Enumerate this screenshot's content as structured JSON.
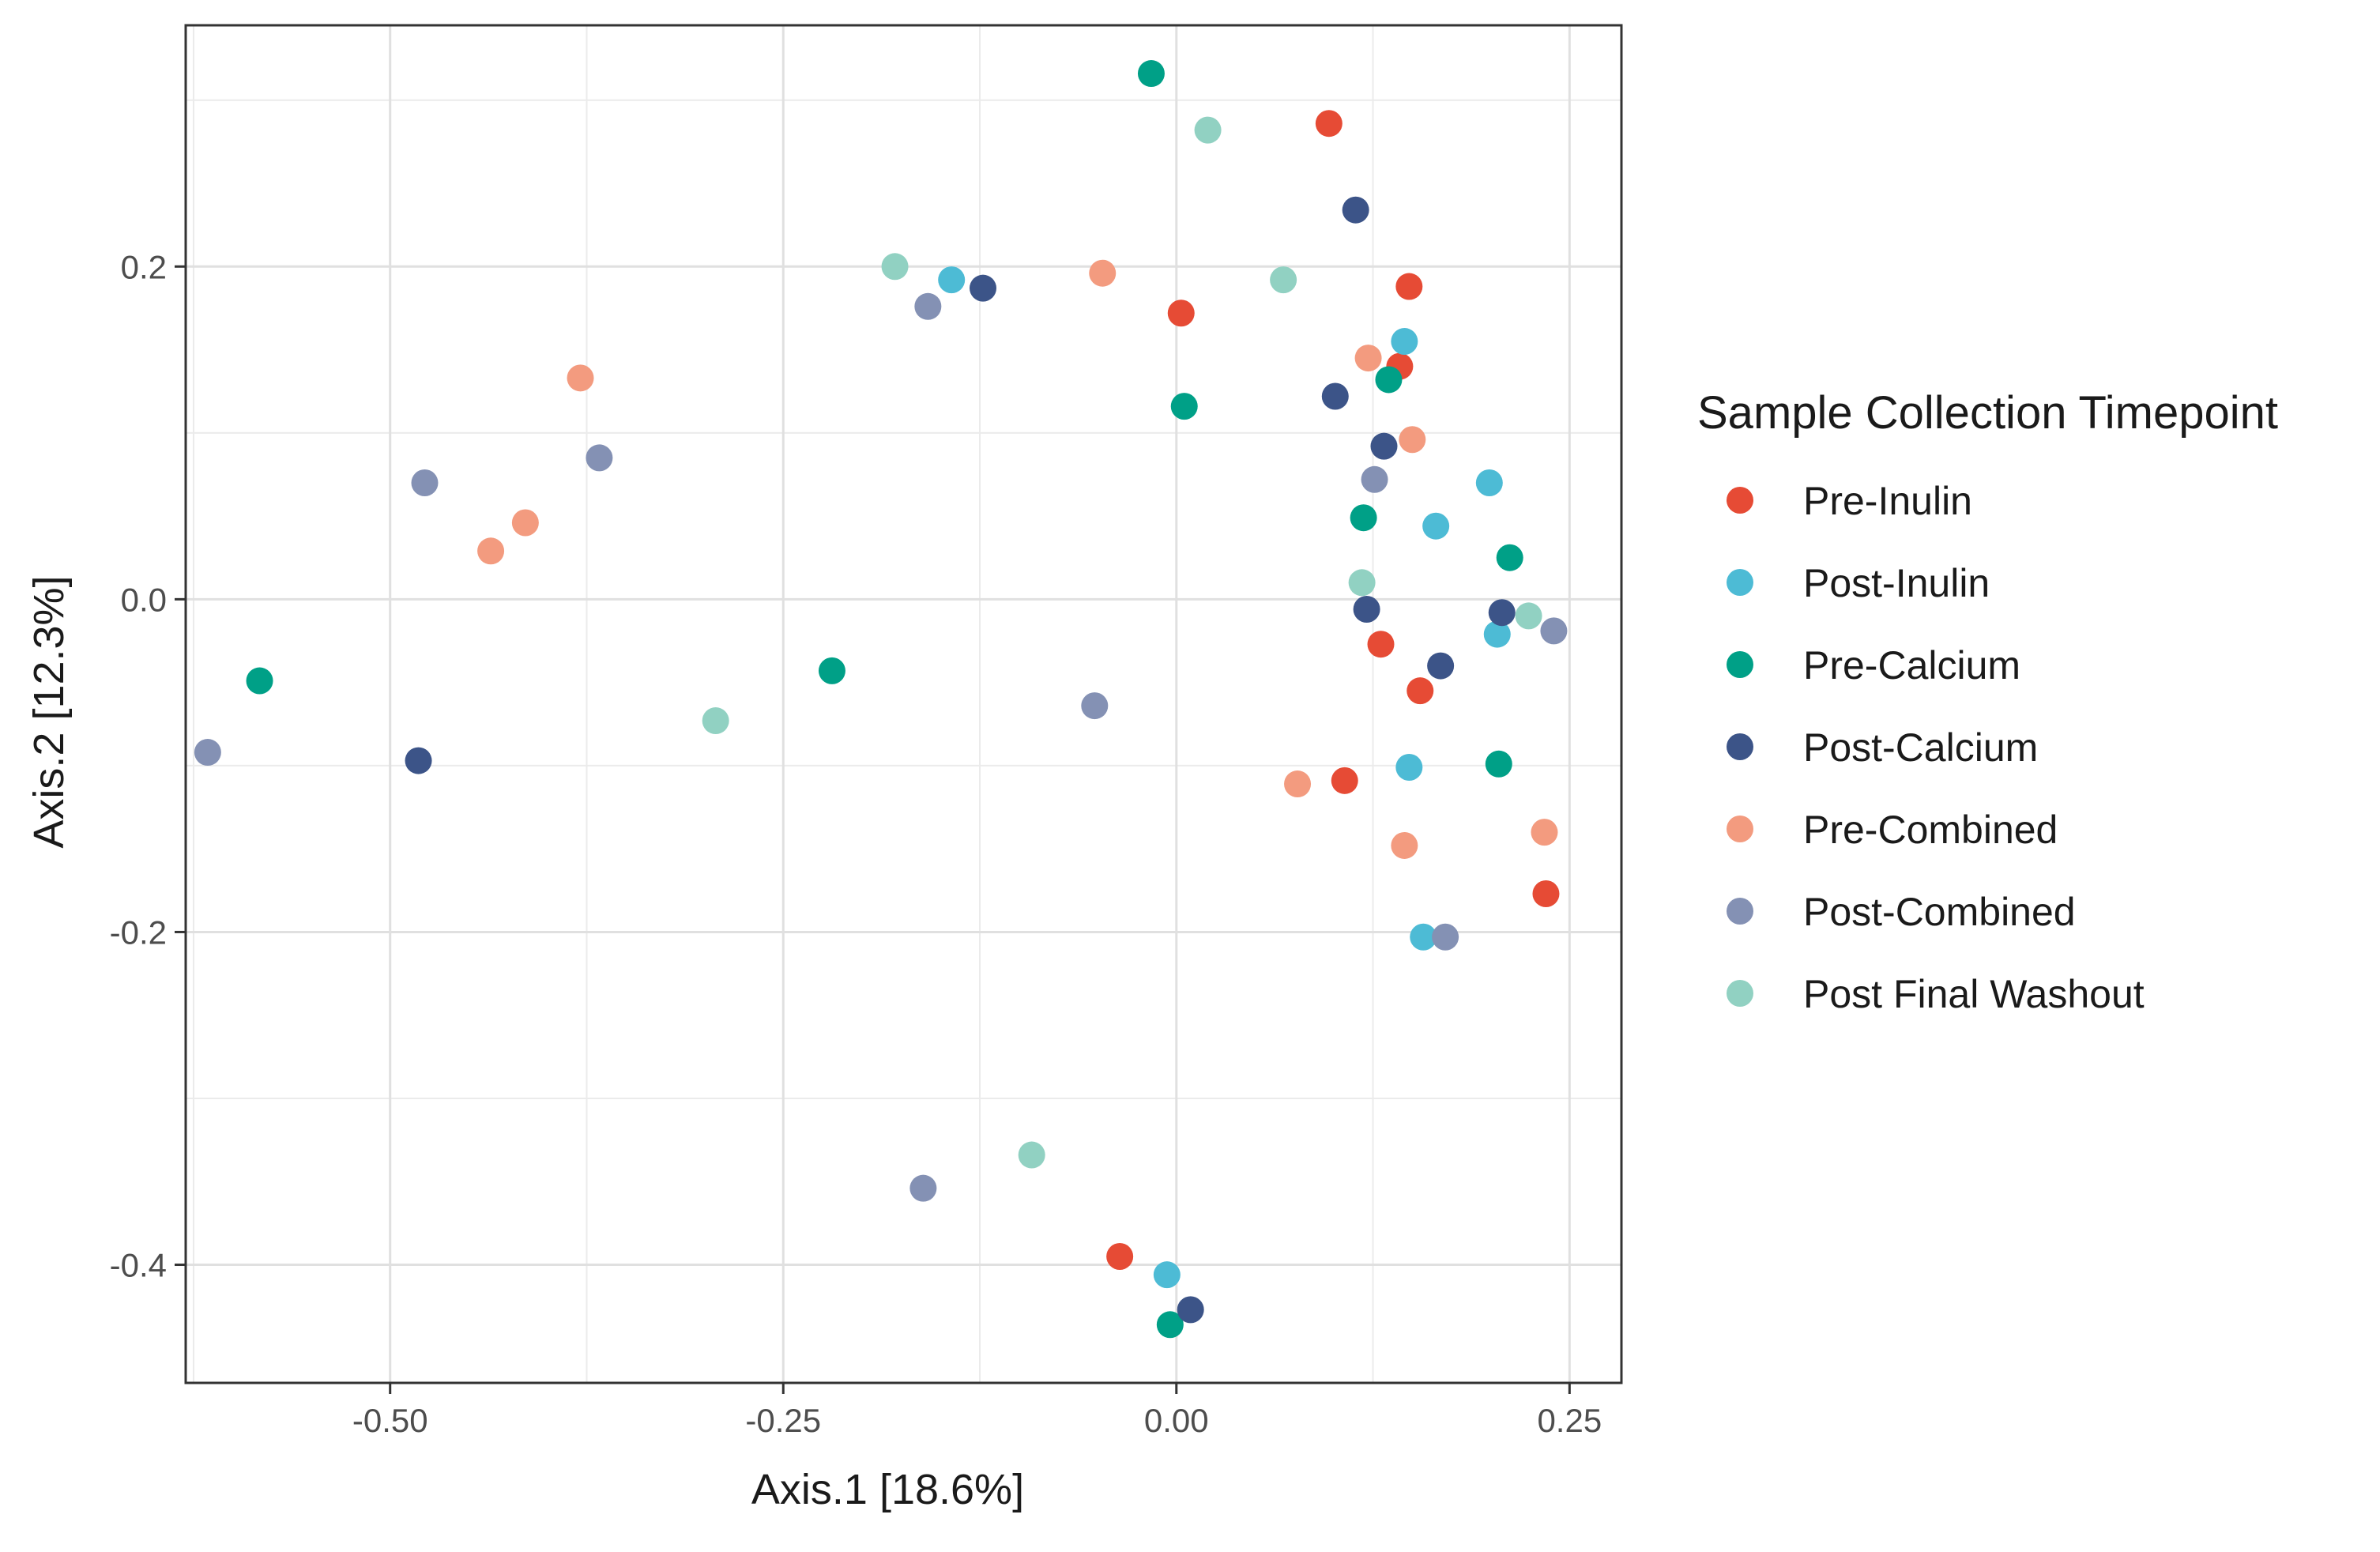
{
  "chart_data": {
    "type": "scatter",
    "title": "",
    "xlabel": "Axis.1   [18.6%]",
    "ylabel": "Axis.2   [12.3%]",
    "xlim": [
      -0.63,
      0.283
    ],
    "ylim": [
      -0.471,
      0.345
    ],
    "x_ticks": [
      -0.5,
      -0.25,
      0.0,
      0.25
    ],
    "x_tick_labels": [
      "-0.50",
      "-0.25",
      "0.00",
      "0.25"
    ],
    "y_ticks": [
      -0.4,
      -0.2,
      0.0,
      0.2
    ],
    "y_tick_labels": [
      "-0.4",
      "-0.2",
      "0.0",
      "0.2"
    ],
    "grid": true,
    "legend": {
      "title": "Sample Collection Timepoint",
      "position": "right"
    },
    "series": [
      {
        "name": "Pre-Inulin",
        "color": "#E64B35",
        "points": [
          [
            0.097,
            0.286
          ],
          [
            0.148,
            0.188
          ],
          [
            0.003,
            0.172
          ],
          [
            0.142,
            0.14
          ],
          [
            0.13,
            -0.027
          ],
          [
            0.155,
            -0.055
          ],
          [
            0.107,
            -0.109
          ],
          [
            0.235,
            -0.177
          ],
          [
            -0.036,
            -0.395
          ]
        ]
      },
      {
        "name": "Post-Inulin",
        "color": "#4DBBD5",
        "points": [
          [
            -0.143,
            0.192
          ],
          [
            0.145,
            0.155
          ],
          [
            0.199,
            0.07
          ],
          [
            0.165,
            0.044
          ],
          [
            0.204,
            -0.021
          ],
          [
            0.148,
            -0.101
          ],
          [
            0.157,
            -0.203
          ],
          [
            -0.006,
            -0.406
          ]
        ]
      },
      {
        "name": "Pre-Calcium",
        "color": "#00A087",
        "points": [
          [
            -0.016,
            0.316
          ],
          [
            0.135,
            0.132
          ],
          [
            0.005,
            0.116
          ],
          [
            0.119,
            0.049
          ],
          [
            0.212,
            0.025
          ],
          [
            -0.219,
            -0.043
          ],
          [
            -0.583,
            -0.049
          ],
          [
            0.205,
            -0.099
          ],
          [
            -0.004,
            -0.436
          ]
        ]
      },
      {
        "name": "Post-Calcium",
        "color": "#3C5488",
        "points": [
          [
            0.114,
            0.234
          ],
          [
            -0.123,
            0.187
          ],
          [
            0.101,
            0.122
          ],
          [
            0.132,
            0.092
          ],
          [
            0.121,
            -0.006
          ],
          [
            0.207,
            -0.008
          ],
          [
            0.168,
            -0.04
          ],
          [
            -0.482,
            -0.097
          ],
          [
            0.009,
            -0.427
          ]
        ]
      },
      {
        "name": "Pre-Combined",
        "color": "#F39B7F",
        "points": [
          [
            -0.047,
            0.196
          ],
          [
            0.122,
            0.145
          ],
          [
            0.15,
            0.096
          ],
          [
            -0.379,
            0.133
          ],
          [
            -0.414,
            0.046
          ],
          [
            -0.436,
            0.029
          ],
          [
            0.077,
            -0.111
          ],
          [
            0.234,
            -0.14
          ],
          [
            0.145,
            -0.148
          ]
        ]
      },
      {
        "name": "Post-Combined",
        "color": "#8491B4",
        "points": [
          [
            -0.158,
            0.176
          ],
          [
            -0.367,
            0.085
          ],
          [
            -0.478,
            0.07
          ],
          [
            0.126,
            0.072
          ],
          [
            -0.052,
            -0.064
          ],
          [
            -0.616,
            -0.092
          ],
          [
            0.24,
            -0.019
          ],
          [
            0.171,
            -0.203
          ],
          [
            -0.161,
            -0.354
          ]
        ]
      },
      {
        "name": "Post Final Washout",
        "color": "#91D1C2",
        "points": [
          [
            0.02,
            0.282
          ],
          [
            0.068,
            0.192
          ],
          [
            -0.179,
            0.2
          ],
          [
            0.118,
            0.01
          ],
          [
            0.224,
            -0.01
          ],
          [
            -0.293,
            -0.073
          ],
          [
            -0.092,
            -0.334
          ]
        ]
      }
    ]
  }
}
